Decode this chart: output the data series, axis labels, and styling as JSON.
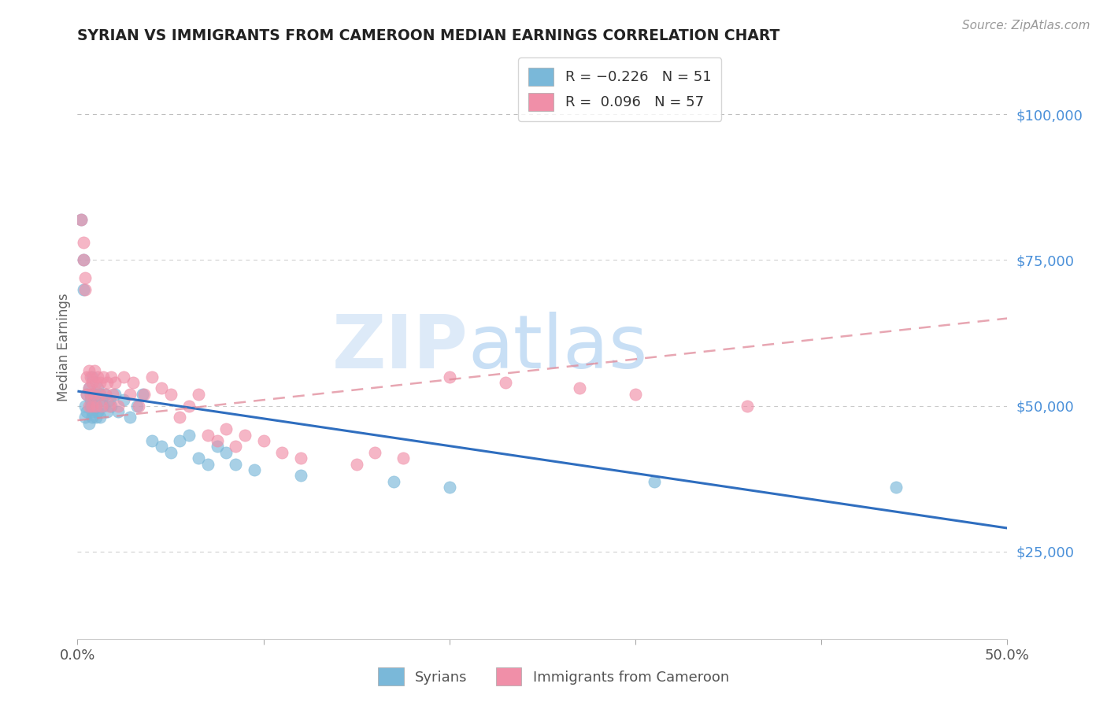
{
  "title": "SYRIAN VS IMMIGRANTS FROM CAMEROON MEDIAN EARNINGS CORRELATION CHART",
  "source": "Source: ZipAtlas.com",
  "ylabel": "Median Earnings",
  "ytick_labels": [
    "$25,000",
    "$50,000",
    "$75,000",
    "$100,000"
  ],
  "ytick_values": [
    25000,
    50000,
    75000,
    100000
  ],
  "legend_syrians": "Syrians",
  "legend_cameroon": "Immigrants from Cameroon",
  "syrians_color": "#7ab8d9",
  "cameroon_color": "#f08fa8",
  "trendline_syrians_color": "#2f6ebf",
  "trendline_cameroon_color": "#e08898",
  "background_color": "#ffffff",
  "grid_color": "#bbbbbb",
  "title_color": "#222222",
  "right_tick_color": "#4a90d9",
  "watermark_zip_color": "#d8e8f5",
  "watermark_atlas_color": "#c5d8ef",
  "syrians_x": [
    0.002,
    0.003,
    0.003,
    0.004,
    0.004,
    0.005,
    0.005,
    0.006,
    0.006,
    0.007,
    0.007,
    0.007,
    0.008,
    0.008,
    0.008,
    0.009,
    0.009,
    0.01,
    0.01,
    0.011,
    0.011,
    0.012,
    0.012,
    0.013,
    0.014,
    0.015,
    0.016,
    0.017,
    0.018,
    0.02,
    0.022,
    0.025,
    0.028,
    0.032,
    0.035,
    0.04,
    0.045,
    0.05,
    0.055,
    0.06,
    0.065,
    0.07,
    0.075,
    0.08,
    0.085,
    0.095,
    0.12,
    0.17,
    0.2,
    0.31,
    0.44
  ],
  "syrians_y": [
    82000,
    75000,
    70000,
    50000,
    48000,
    52000,
    49000,
    47000,
    53000,
    52000,
    51000,
    50000,
    55000,
    49000,
    48000,
    52000,
    51000,
    50000,
    48000,
    53000,
    49000,
    52000,
    48000,
    51000,
    50000,
    52000,
    49000,
    51000,
    50000,
    52000,
    49000,
    51000,
    48000,
    50000,
    52000,
    44000,
    43000,
    42000,
    44000,
    45000,
    41000,
    40000,
    43000,
    42000,
    40000,
    39000,
    38000,
    37000,
    36000,
    37000,
    36000
  ],
  "cameroon_x": [
    0.002,
    0.003,
    0.003,
    0.004,
    0.004,
    0.005,
    0.005,
    0.006,
    0.006,
    0.006,
    0.007,
    0.007,
    0.008,
    0.008,
    0.009,
    0.009,
    0.01,
    0.01,
    0.011,
    0.012,
    0.012,
    0.013,
    0.014,
    0.015,
    0.016,
    0.017,
    0.018,
    0.019,
    0.02,
    0.022,
    0.025,
    0.028,
    0.03,
    0.033,
    0.036,
    0.04,
    0.045,
    0.05,
    0.055,
    0.06,
    0.065,
    0.07,
    0.075,
    0.08,
    0.085,
    0.09,
    0.1,
    0.11,
    0.12,
    0.15,
    0.16,
    0.175,
    0.2,
    0.23,
    0.27,
    0.3,
    0.36
  ],
  "cameroon_y": [
    82000,
    78000,
    75000,
    72000,
    70000,
    55000,
    52000,
    56000,
    50000,
    53000,
    55000,
    52000,
    54000,
    50000,
    56000,
    52000,
    54000,
    50000,
    55000,
    52000,
    54000,
    50000,
    55000,
    52000,
    54000,
    50000,
    55000,
    52000,
    54000,
    50000,
    55000,
    52000,
    54000,
    50000,
    52000,
    55000,
    53000,
    52000,
    48000,
    50000,
    52000,
    45000,
    44000,
    46000,
    43000,
    45000,
    44000,
    42000,
    41000,
    40000,
    42000,
    41000,
    55000,
    54000,
    53000,
    52000,
    50000
  ],
  "sy_trend_x0": 0.0,
  "sy_trend_y0": 52500,
  "sy_trend_x1": 0.5,
  "sy_trend_y1": 29000,
  "ca_trend_x0": 0.0,
  "ca_trend_y0": 47500,
  "ca_trend_x1": 0.5,
  "ca_trend_y1": 65000,
  "xlim": [
    0.0,
    0.5
  ],
  "ylim": [
    10000,
    110000
  ]
}
